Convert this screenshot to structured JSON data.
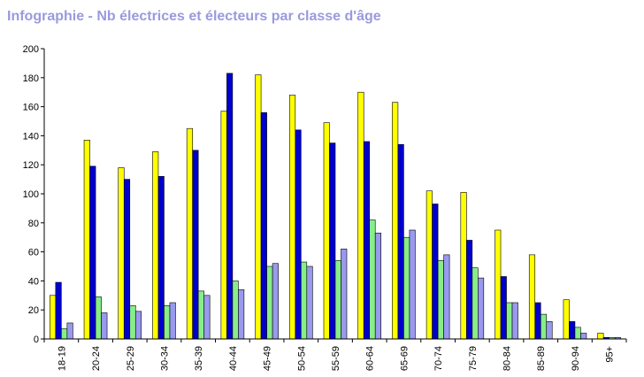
{
  "chart_data": {
    "type": "bar",
    "title": "Infographie - Nb électrices et électeurs par classe d'âge",
    "xlabel": "",
    "ylabel": "",
    "ylim": [
      0,
      200
    ],
    "yticks": [
      "0",
      "20",
      "40",
      "60",
      "80",
      "100",
      "120",
      "140",
      "160",
      "180",
      "200"
    ],
    "grid": false,
    "categories": [
      "18-19",
      "20-24",
      "25-29",
      "30-34",
      "35-39",
      "40-44",
      "45-49",
      "50-54",
      "55-59",
      "60-64",
      "65-69",
      "70-74",
      "75-79",
      "80-84",
      "85-89",
      "90-94",
      "95+"
    ],
    "series": [
      {
        "color": "#ffff00",
        "values": [
          30,
          137,
          118,
          129,
          145,
          157,
          182,
          168,
          149,
          170,
          163,
          102,
          101,
          75,
          58,
          27,
          4
        ]
      },
      {
        "color": "#0000cc",
        "values": [
          39,
          119,
          110,
          112,
          130,
          183,
          156,
          144,
          135,
          136,
          134,
          93,
          68,
          43,
          25,
          12,
          1
        ]
      },
      {
        "color": "#88ee88",
        "values": [
          7,
          29,
          23,
          23,
          33,
          40,
          50,
          53,
          54,
          82,
          70,
          54,
          49,
          25,
          17,
          8,
          1
        ]
      },
      {
        "color": "#9999ee",
        "values": [
          11,
          18,
          19,
          25,
          30,
          34,
          52,
          50,
          62,
          73,
          75,
          58,
          42,
          25,
          12,
          4,
          1
        ]
      }
    ],
    "colors": {
      "title": "#9a9ade",
      "axis": "#000000",
      "bar_outline": "#000000"
    }
  }
}
